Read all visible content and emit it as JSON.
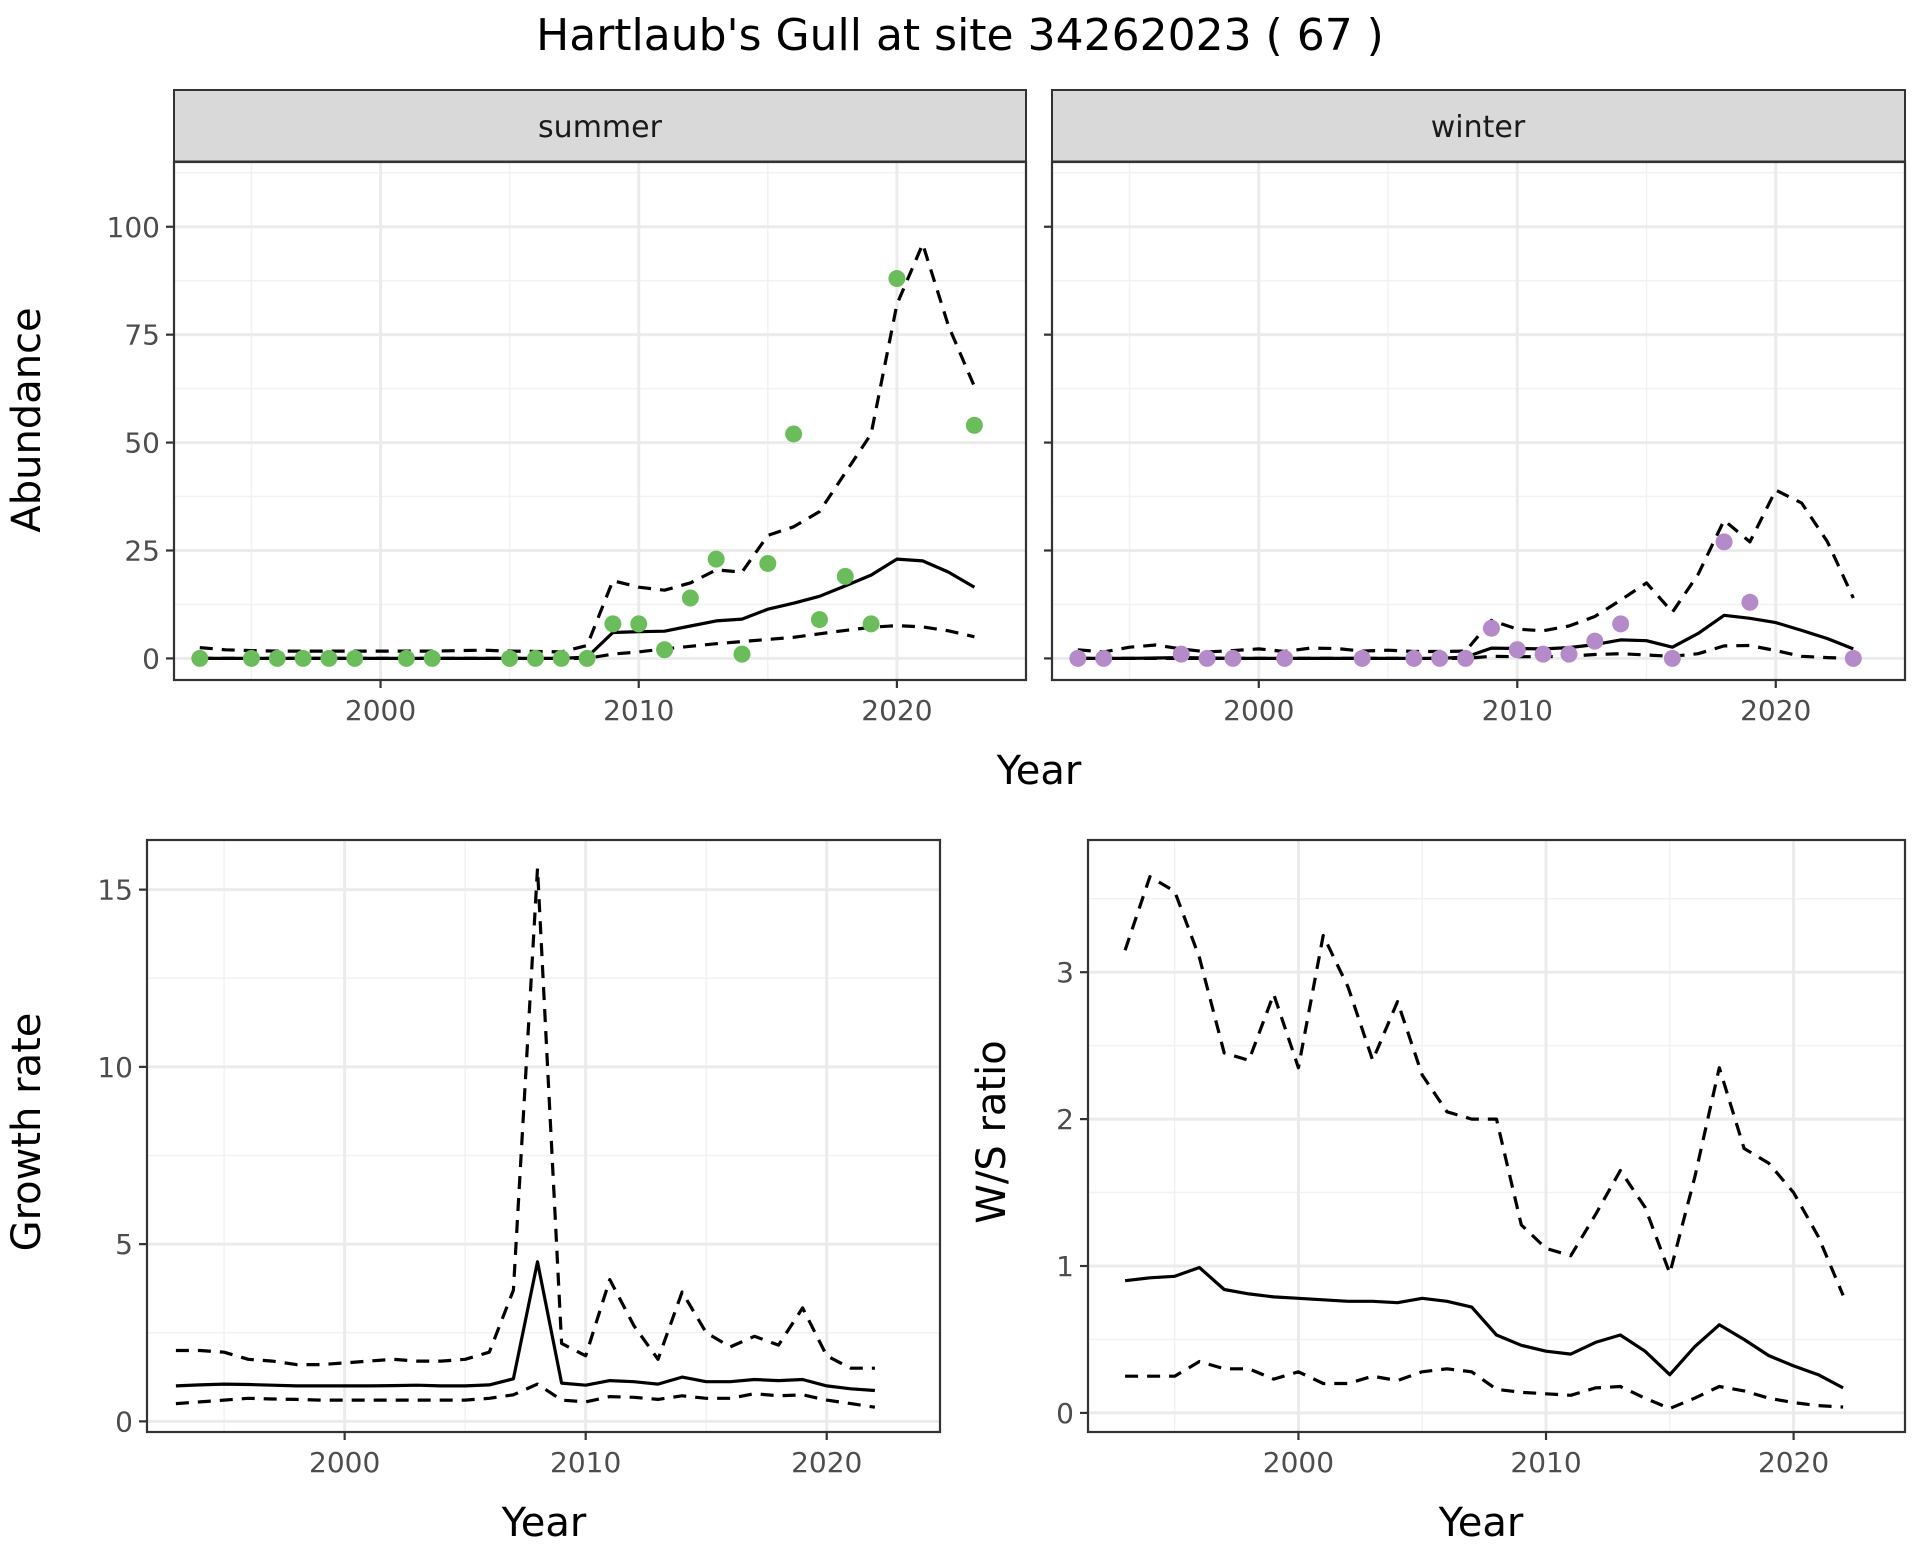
{
  "title": "Hartlaub's Gull at site 34262023 ( 67 )",
  "colors": {
    "summer_points": "#6bbd5b",
    "winter_points": "#b58ac9",
    "line": "#000000",
    "strip_bg": "#d9d9d9",
    "grid": "#ebebeb"
  },
  "chart_data": [
    {
      "type": "line",
      "panel": "summer",
      "strip_label": "summer",
      "xlabel": "Year",
      "ylabel": "Abundance",
      "xlim": [
        1992,
        2025
      ],
      "ylim": [
        -5,
        115
      ],
      "x_ticks": [
        2000,
        2010,
        2020
      ],
      "y_ticks": [
        0,
        25,
        50,
        75,
        100
      ],
      "grid": true,
      "points": {
        "name": "observed",
        "x": [
          1993,
          1995,
          1996,
          1997,
          1998,
          1999,
          2001,
          2002,
          2005,
          2006,
          2007,
          2008,
          2009,
          2010,
          2011,
          2012,
          2013,
          2014,
          2015,
          2016,
          2017,
          2018,
          2019,
          2020,
          2023
        ],
        "y": [
          0,
          0,
          0,
          0,
          0,
          0,
          0,
          0,
          0,
          0,
          0,
          0,
          8,
          8,
          2,
          14,
          23,
          1,
          22,
          52,
          9,
          19,
          8,
          88,
          54
        ]
      },
      "series": [
        {
          "style": "solid",
          "x": [
            1993,
            1994,
            1995,
            1996,
            1997,
            1998,
            1999,
            2000,
            2001,
            2002,
            2003,
            2004,
            2005,
            2006,
            2007,
            2008,
            2009,
            2010,
            2011,
            2012,
            2013,
            2014,
            2015,
            2016,
            2017,
            2018,
            2019,
            2020,
            2021,
            2022,
            2023
          ],
          "values": [
            0,
            0,
            0,
            0,
            0,
            0,
            0,
            0,
            0,
            0,
            0,
            0,
            0,
            0,
            0,
            0.3,
            6,
            6.2,
            6.3,
            7.5,
            8.7,
            9.1,
            11.4,
            12.8,
            14.4,
            16.8,
            19.3,
            23,
            22.6,
            20,
            16.5
          ]
        },
        {
          "style": "dashed",
          "x": [
            1993,
            1994,
            1995,
            1996,
            1997,
            1998,
            1999,
            2000,
            2001,
            2002,
            2003,
            2004,
            2005,
            2006,
            2007,
            2008,
            2009,
            2010,
            2011,
            2012,
            2013,
            2014,
            2015,
            2016,
            2017,
            2018,
            2019,
            2020,
            2021,
            2022,
            2023
          ],
          "values": [
            2.5,
            2,
            1.8,
            1.7,
            1.7,
            1.7,
            1.7,
            1.7,
            1.7,
            1.7,
            1.8,
            1.9,
            1.7,
            1.6,
            1.5,
            3,
            18,
            16.5,
            15.8,
            17.5,
            20.5,
            20,
            28.5,
            30.5,
            34,
            43,
            52,
            82,
            96,
            77,
            63
          ]
        },
        {
          "style": "dashed",
          "x": [
            1993,
            1994,
            1995,
            1996,
            1997,
            1998,
            1999,
            2000,
            2001,
            2002,
            2003,
            2004,
            2005,
            2006,
            2007,
            2008,
            2009,
            2010,
            2011,
            2012,
            2013,
            2014,
            2015,
            2016,
            2017,
            2018,
            2019,
            2020,
            2021,
            2022,
            2023
          ],
          "values": [
            0,
            0,
            0,
            0,
            0,
            0,
            0,
            0,
            0,
            0,
            0,
            0,
            0,
            0,
            0,
            0,
            1,
            1.5,
            2.2,
            2.8,
            3.4,
            3.9,
            4.4,
            4.9,
            5.7,
            6.5,
            7.2,
            7.6,
            7.3,
            6.4,
            5
          ]
        }
      ]
    },
    {
      "type": "line",
      "panel": "winter",
      "strip_label": "winter",
      "xlabel": "Year",
      "ylabel": "Abundance",
      "xlim": [
        1992,
        2025
      ],
      "ylim": [
        -5,
        115
      ],
      "x_ticks": [
        2000,
        2010,
        2020
      ],
      "y_ticks": [
        0,
        25,
        50,
        75,
        100
      ],
      "grid": true,
      "points": {
        "name": "observed",
        "x": [
          1993,
          1994,
          1997,
          1998,
          1999,
          2001,
          2004,
          2006,
          2007,
          2008,
          2009,
          2010,
          2011,
          2012,
          2013,
          2014,
          2016,
          2018,
          2019,
          2023
        ],
        "y": [
          0,
          0,
          1,
          0,
          0,
          0,
          0,
          0,
          0,
          0,
          7,
          2,
          1,
          1,
          4,
          8,
          0,
          27,
          13,
          0
        ]
      },
      "series": [
        {
          "style": "solid",
          "x": [
            1993,
            1994,
            1995,
            1996,
            1997,
            1998,
            1999,
            2000,
            2001,
            2002,
            2003,
            2004,
            2005,
            2006,
            2007,
            2008,
            2009,
            2010,
            2011,
            2012,
            2013,
            2014,
            2015,
            2016,
            2017,
            2018,
            2019,
            2020,
            2021,
            2022,
            2023
          ],
          "values": [
            0,
            0,
            0,
            0.1,
            0.2,
            0.1,
            0,
            0,
            0,
            0,
            0,
            0,
            0,
            0,
            0,
            0.3,
            2.4,
            2.3,
            2.2,
            2.5,
            3.2,
            4.3,
            4.1,
            2.6,
            5.8,
            10,
            9.3,
            8.3,
            6.5,
            4.6,
            2.2
          ]
        },
        {
          "style": "dashed",
          "x": [
            1993,
            1994,
            1995,
            1996,
            1997,
            1998,
            1999,
            2000,
            2001,
            2002,
            2003,
            2004,
            2005,
            2006,
            2007,
            2008,
            2009,
            2010,
            2011,
            2012,
            2013,
            2014,
            2015,
            2016,
            2017,
            2018,
            2019,
            2020,
            2021,
            2022,
            2023
          ],
          "values": [
            2,
            1.5,
            2.6,
            3.1,
            2.2,
            1.5,
            1.8,
            2.2,
            1.6,
            2.4,
            2.3,
            1.7,
            1.9,
            1.6,
            1.6,
            1.7,
            8.8,
            6.8,
            6.4,
            7.5,
            9.7,
            13.5,
            17.5,
            10.7,
            19.5,
            32,
            27,
            39,
            36,
            27,
            14
          ]
        },
        {
          "style": "dashed",
          "x": [
            1993,
            1994,
            1995,
            1996,
            1997,
            1998,
            1999,
            2000,
            2001,
            2002,
            2003,
            2004,
            2005,
            2006,
            2007,
            2008,
            2009,
            2010,
            2011,
            2012,
            2013,
            2014,
            2015,
            2016,
            2017,
            2018,
            2019,
            2020,
            2021,
            2022,
            2023
          ],
          "values": [
            0,
            0,
            0,
            0,
            0,
            0,
            0,
            0,
            0,
            0,
            0,
            0,
            0,
            0,
            0,
            0,
            0.5,
            0.4,
            0.4,
            0.5,
            0.9,
            1.1,
            0.8,
            0.5,
            1.1,
            2.9,
            3,
            1.8,
            0.5,
            0.2,
            0
          ]
        }
      ]
    },
    {
      "type": "line",
      "panel": "growth",
      "xlabel": "Year",
      "ylabel": "Growth rate",
      "xlim": [
        1991.8,
        2024.7
      ],
      "ylim": [
        -0.3,
        16.4
      ],
      "x_ticks": [
        2000,
        2010,
        2020
      ],
      "y_ticks": [
        0,
        5,
        10,
        15
      ],
      "grid": true,
      "series": [
        {
          "style": "solid",
          "x": [
            1993,
            1994,
            1995,
            1996,
            1997,
            1998,
            1999,
            2000,
            2001,
            2002,
            2003,
            2004,
            2005,
            2006,
            2007,
            2008,
            2009,
            2010,
            2011,
            2012,
            2013,
            2014,
            2015,
            2016,
            2017,
            2018,
            2019,
            2020,
            2021,
            2022
          ],
          "values": [
            1,
            1.03,
            1.05,
            1.04,
            1.02,
            1,
            1,
            1,
            1,
            1.01,
            1.02,
            1,
            1,
            1.03,
            1.2,
            4.5,
            1.08,
            1.02,
            1.15,
            1.12,
            1.05,
            1.25,
            1.12,
            1.12,
            1.18,
            1.15,
            1.18,
            1,
            0.92,
            0.87
          ]
        },
        {
          "style": "dashed",
          "x": [
            1993,
            1994,
            1995,
            1996,
            1997,
            1998,
            1999,
            2000,
            2001,
            2002,
            2003,
            2004,
            2005,
            2006,
            2007,
            2008,
            2009,
            2010,
            2011,
            2012,
            2013,
            2014,
            2015,
            2016,
            2017,
            2018,
            2019,
            2020,
            2021,
            2022
          ],
          "values": [
            2,
            2,
            1.95,
            1.75,
            1.7,
            1.6,
            1.6,
            1.65,
            1.7,
            1.75,
            1.7,
            1.7,
            1.75,
            1.95,
            3.7,
            15.6,
            2.2,
            1.85,
            4,
            2.7,
            1.75,
            3.65,
            2.5,
            2.1,
            2.4,
            2.15,
            3.2,
            1.85,
            1.5,
            1.5
          ]
        },
        {
          "style": "dashed",
          "x": [
            1993,
            1994,
            1995,
            1996,
            1997,
            1998,
            1999,
            2000,
            2001,
            2002,
            2003,
            2004,
            2005,
            2006,
            2007,
            2008,
            2009,
            2010,
            2011,
            2012,
            2013,
            2014,
            2015,
            2016,
            2017,
            2018,
            2019,
            2020,
            2021,
            2022
          ],
          "values": [
            0.5,
            0.55,
            0.6,
            0.65,
            0.63,
            0.62,
            0.6,
            0.6,
            0.6,
            0.6,
            0.6,
            0.6,
            0.6,
            0.65,
            0.75,
            1.05,
            0.6,
            0.55,
            0.7,
            0.68,
            0.62,
            0.72,
            0.65,
            0.65,
            0.78,
            0.72,
            0.75,
            0.6,
            0.5,
            0.4
          ]
        }
      ]
    },
    {
      "type": "line",
      "panel": "ws_ratio",
      "xlabel": "Year",
      "ylabel": "W/S ratio",
      "xlim": [
        1991.5,
        2024.5
      ],
      "ylim": [
        -0.13,
        3.9
      ],
      "x_ticks": [
        2000,
        2010,
        2020
      ],
      "y_ticks": [
        0,
        1,
        2,
        3
      ],
      "grid": true,
      "series": [
        {
          "style": "solid",
          "x": [
            1993,
            1994,
            1995,
            1996,
            1997,
            1998,
            1999,
            2000,
            2001,
            2002,
            2003,
            2004,
            2005,
            2006,
            2007,
            2008,
            2009,
            2010,
            2011,
            2012,
            2013,
            2014,
            2015,
            2016,
            2017,
            2018,
            2019,
            2020,
            2021,
            2022
          ],
          "values": [
            0.9,
            0.92,
            0.93,
            0.99,
            0.84,
            0.81,
            0.79,
            0.78,
            0.77,
            0.76,
            0.76,
            0.75,
            0.78,
            0.76,
            0.72,
            0.53,
            0.46,
            0.42,
            0.4,
            0.48,
            0.53,
            0.42,
            0.26,
            0.45,
            0.6,
            0.5,
            0.39,
            0.32,
            0.26,
            0.17
          ]
        },
        {
          "style": "dashed",
          "x": [
            1993,
            1994,
            1995,
            1996,
            1997,
            1998,
            1999,
            2000,
            2001,
            2002,
            2003,
            2004,
            2005,
            2006,
            2007,
            2008,
            2009,
            2010,
            2011,
            2012,
            2013,
            2014,
            2015,
            2016,
            2017,
            2018,
            2019,
            2020,
            2021,
            2022
          ],
          "values": [
            3.15,
            3.65,
            3.55,
            3.1,
            2.45,
            2.4,
            2.85,
            2.35,
            3.25,
            2.9,
            2.4,
            2.8,
            2.3,
            2.05,
            2,
            2,
            1.28,
            1.12,
            1.07,
            1.35,
            1.65,
            1.4,
            0.95,
            1.6,
            2.35,
            1.8,
            1.7,
            1.5,
            1.2,
            0.8
          ]
        },
        {
          "style": "dashed",
          "x": [
            1993,
            1994,
            1995,
            1996,
            1997,
            1998,
            1999,
            2000,
            2001,
            2002,
            2003,
            2004,
            2005,
            2006,
            2007,
            2008,
            2009,
            2010,
            2011,
            2012,
            2013,
            2014,
            2015,
            2016,
            2017,
            2018,
            2019,
            2020,
            2021,
            2022
          ],
          "values": [
            0.25,
            0.25,
            0.25,
            0.35,
            0.3,
            0.3,
            0.23,
            0.28,
            0.2,
            0.2,
            0.25,
            0.22,
            0.28,
            0.3,
            0.28,
            0.16,
            0.14,
            0.13,
            0.12,
            0.17,
            0.18,
            0.1,
            0.03,
            0.1,
            0.18,
            0.15,
            0.1,
            0.07,
            0.05,
            0.04
          ]
        }
      ]
    }
  ]
}
